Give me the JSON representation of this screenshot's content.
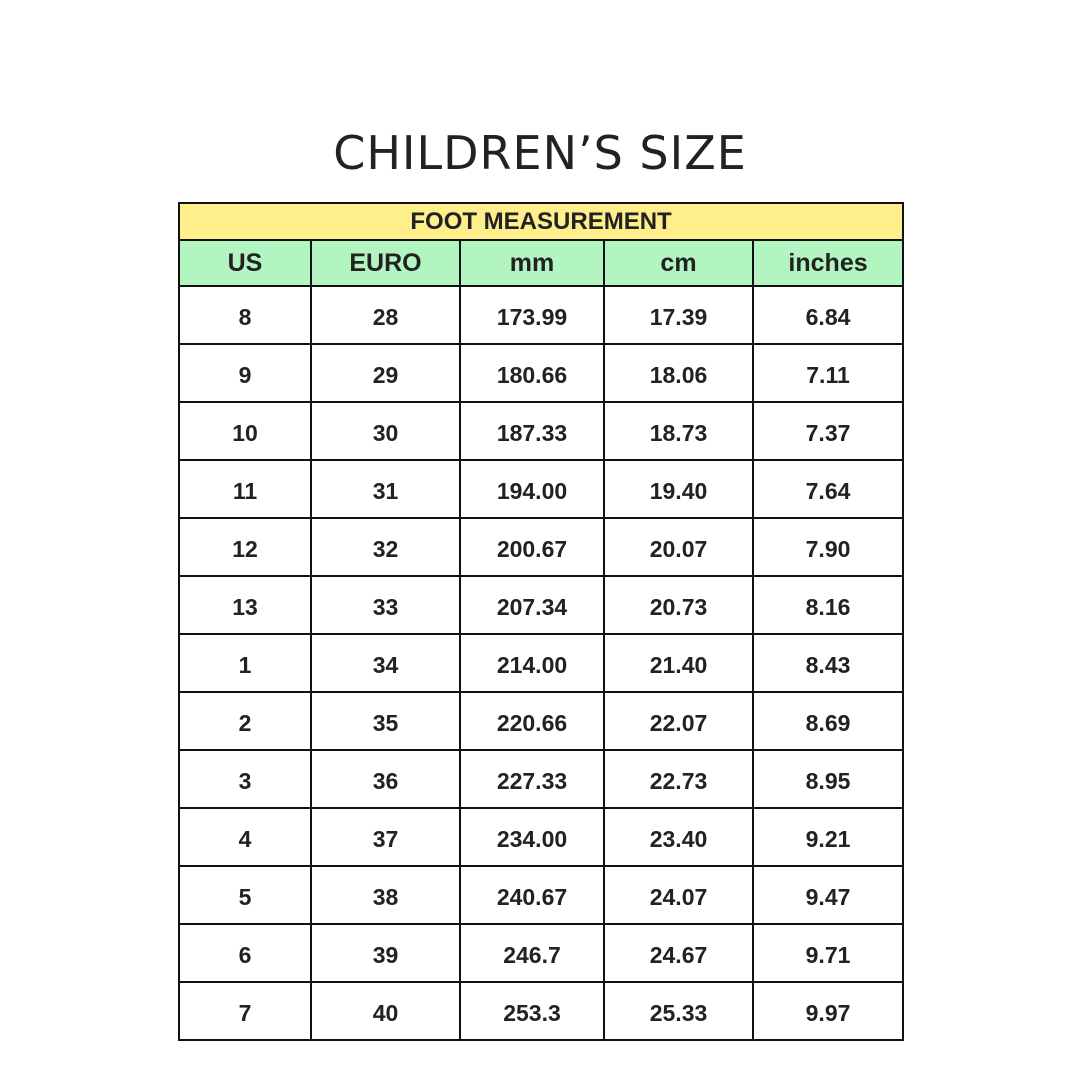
{
  "title": "CHILDREN’S SIZE",
  "table": {
    "group_header": "FOOT MEASUREMENT",
    "columns": [
      "US",
      "EURO",
      "mm",
      "cm",
      "inches"
    ],
    "rows": [
      [
        "8",
        "28",
        "173.99",
        "17.39",
        "6.84"
      ],
      [
        "9",
        "29",
        "180.66",
        "18.06",
        "7.11"
      ],
      [
        "10",
        "30",
        "187.33",
        "18.73",
        "7.37"
      ],
      [
        "11",
        "31",
        "194.00",
        "19.40",
        "7.64"
      ],
      [
        "12",
        "32",
        "200.67",
        "20.07",
        "7.90"
      ],
      [
        "13",
        "33",
        "207.34",
        "20.73",
        "8.16"
      ],
      [
        "1",
        "34",
        "214.00",
        "21.40",
        "8.43"
      ],
      [
        "2",
        "35",
        "220.66",
        "22.07",
        "8.69"
      ],
      [
        "3",
        "36",
        "227.33",
        "22.73",
        "8.95"
      ],
      [
        "4",
        "37",
        "234.00",
        "23.40",
        "9.21"
      ],
      [
        "5",
        "38",
        "240.67",
        "24.07",
        "9.47"
      ],
      [
        "6",
        "39",
        "246.7",
        "24.67",
        "9.71"
      ],
      [
        "7",
        "40",
        "253.3",
        "25.33",
        "9.97"
      ]
    ]
  },
  "colors": {
    "group_header_bg": "#FFEF8A",
    "column_header_bg": "#B2F5C0"
  }
}
